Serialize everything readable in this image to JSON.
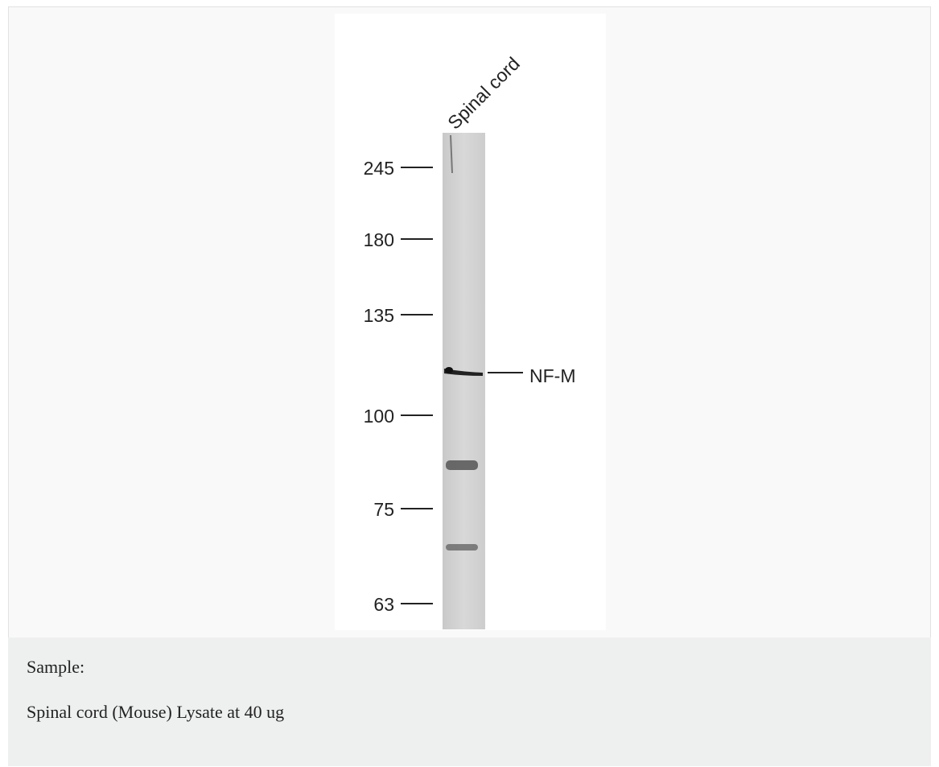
{
  "figure": {
    "lane_label": "Spinal cord",
    "markers": [
      245,
      180,
      135,
      100,
      75,
      63
    ],
    "band_label": "NF-M"
  },
  "caption": {
    "heading": "Sample:",
    "text": "Spinal cord (Mouse) Lysate at 40 ug"
  }
}
